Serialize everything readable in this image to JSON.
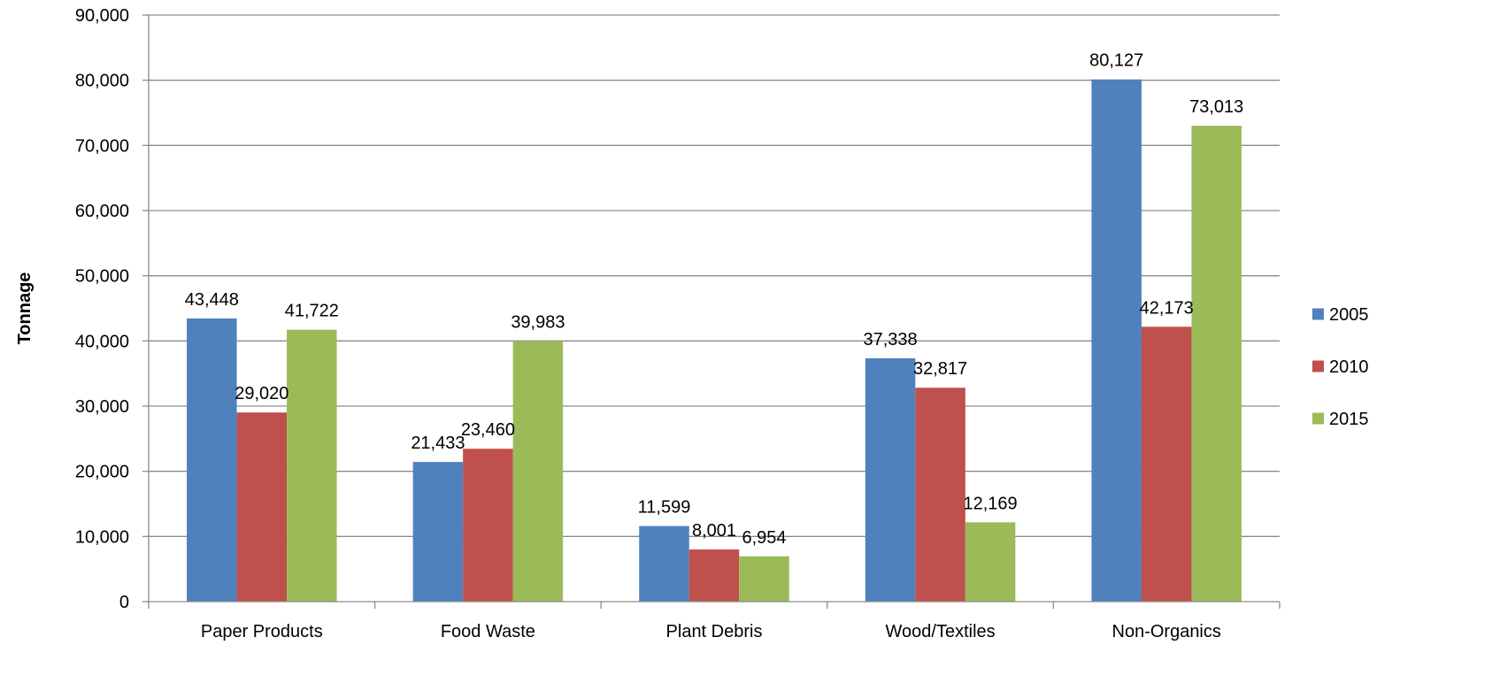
{
  "chart_data": {
    "type": "bar",
    "title": "",
    "xlabel": "",
    "ylabel": "Tonnage",
    "ylim": [
      0,
      90000
    ],
    "ytick_step": 10000,
    "grid": true,
    "legend_position": "right",
    "categories": [
      "Paper Products",
      "Food Waste",
      "Plant Debris",
      "Wood/Textiles",
      "Non-Organics"
    ],
    "series": [
      {
        "name": "2005",
        "color": "#4F81BD",
        "values": [
          43448,
          21433,
          11599,
          37338,
          80127
        ]
      },
      {
        "name": "2010",
        "color": "#C0504D",
        "values": [
          29020,
          23460,
          8001,
          32817,
          42173
        ]
      },
      {
        "name": "2015",
        "color": "#9BBB59",
        "values": [
          41722,
          39983,
          6954,
          12169,
          73013
        ]
      }
    ]
  }
}
